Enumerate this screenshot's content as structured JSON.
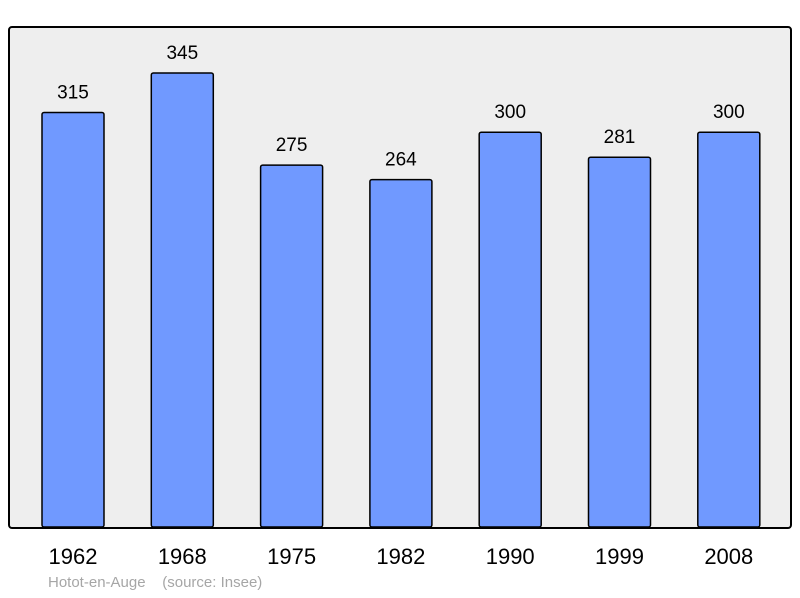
{
  "chart_data": {
    "type": "bar",
    "categories": [
      "1962",
      "1968",
      "1975",
      "1982",
      "1990",
      "1999",
      "2008"
    ],
    "values": [
      315,
      345,
      275,
      264,
      300,
      281,
      300
    ],
    "title": "",
    "xlabel": "",
    "ylabel": "",
    "ylim": [
      0,
      345
    ],
    "grid": false,
    "legend": "none",
    "colors": {
      "bar_fill": "#7099ff",
      "bar_stroke": "#000000",
      "plot_background": "#eeeeee",
      "frame": "#000000"
    }
  },
  "caption": {
    "place": "Hotot-en-Auge",
    "source": "(source: Insee)"
  }
}
